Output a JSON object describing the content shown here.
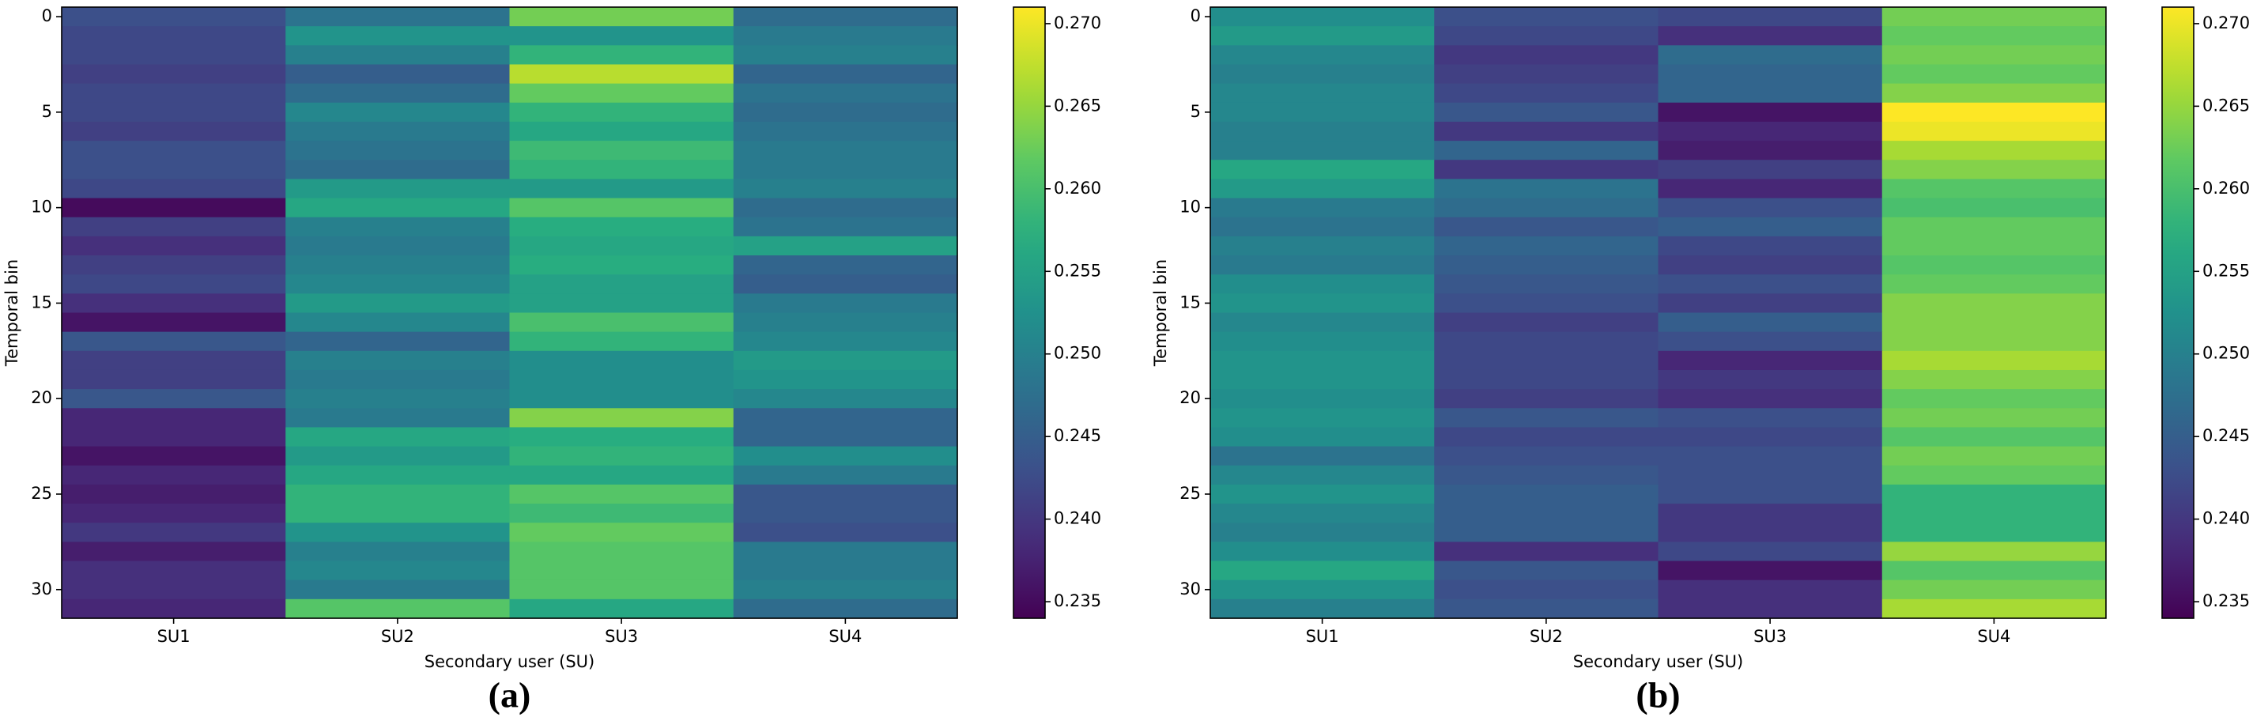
{
  "chart_data": [
    {
      "type": "heatmap",
      "caption": "(a)",
      "xlabel": "Secondary user (SU)",
      "ylabel": "Temporal bin",
      "categories": [
        "SU1",
        "SU2",
        "SU3",
        "SU4"
      ],
      "ylim": [
        -0.5,
        31.5
      ],
      "yticks": [
        0,
        5,
        10,
        15,
        20,
        25,
        30
      ],
      "colormap": "viridis",
      "zlim": [
        0.234,
        0.271
      ],
      "zticks": [
        0.235,
        {
          "value": 0.24,
          "label": "0.240"
        },
        0.245,
        {
          "value": 0.25,
          "label": "0.250"
        },
        0.255,
        {
          "value": 0.26,
          "label": "0.260"
        },
        0.265,
        {
          "value": 0.27,
          "label": "0.270"
        }
      ],
      "values": [
        [
          0.243,
          0.248,
          0.263,
          0.247
        ],
        [
          0.242,
          0.253,
          0.253,
          0.249
        ],
        [
          0.242,
          0.25,
          0.258,
          0.25
        ],
        [
          0.241,
          0.245,
          0.267,
          0.246
        ],
        [
          0.242,
          0.247,
          0.262,
          0.248
        ],
        [
          0.242,
          0.251,
          0.258,
          0.247
        ],
        [
          0.241,
          0.249,
          0.256,
          0.248
        ],
        [
          0.243,
          0.248,
          0.259,
          0.249
        ],
        [
          0.243,
          0.247,
          0.258,
          0.249
        ],
        [
          0.242,
          0.254,
          0.254,
          0.25
        ],
        [
          0.235,
          0.256,
          0.261,
          0.247
        ],
        [
          0.241,
          0.25,
          0.257,
          0.248
        ],
        [
          0.239,
          0.249,
          0.256,
          0.255
        ],
        [
          0.241,
          0.25,
          0.257,
          0.246
        ],
        [
          0.242,
          0.251,
          0.255,
          0.245
        ],
        [
          0.239,
          0.254,
          0.255,
          0.249
        ],
        [
          0.236,
          0.251,
          0.26,
          0.25
        ],
        [
          0.244,
          0.246,
          0.258,
          0.251
        ],
        [
          0.241,
          0.25,
          0.252,
          0.254
        ],
        [
          0.241,
          0.249,
          0.252,
          0.253
        ],
        [
          0.244,
          0.25,
          0.252,
          0.251
        ],
        [
          0.238,
          0.249,
          0.264,
          0.246
        ],
        [
          0.238,
          0.256,
          0.257,
          0.246
        ],
        [
          0.236,
          0.254,
          0.258,
          0.252
        ],
        [
          0.238,
          0.256,
          0.256,
          0.249
        ],
        [
          0.237,
          0.258,
          0.261,
          0.244
        ],
        [
          0.238,
          0.258,
          0.259,
          0.244
        ],
        [
          0.24,
          0.253,
          0.262,
          0.243
        ],
        [
          0.237,
          0.25,
          0.261,
          0.249
        ],
        [
          0.239,
          0.251,
          0.261,
          0.249
        ],
        [
          0.239,
          0.249,
          0.261,
          0.25
        ],
        [
          0.238,
          0.261,
          0.256,
          0.247
        ]
      ]
    },
    {
      "type": "heatmap",
      "caption": "(b)",
      "xlabel": "Secondary user (SU)",
      "ylabel": "Temporal bin",
      "categories": [
        "SU1",
        "SU2",
        "SU3",
        "SU4"
      ],
      "ylim": [
        -0.5,
        31.5
      ],
      "yticks": [
        0,
        5,
        10,
        15,
        20,
        25,
        30
      ],
      "colormap": "viridis",
      "zlim": [
        0.234,
        0.271
      ],
      "zticks": [
        0.235,
        {
          "value": 0.24,
          "label": "0.240"
        },
        0.245,
        {
          "value": 0.25,
          "label": "0.250"
        },
        0.255,
        {
          "value": 0.26,
          "label": "0.260"
        },
        0.265,
        {
          "value": 0.27,
          "label": "0.270"
        }
      ],
      "values": [
        [
          0.252,
          0.243,
          0.242,
          0.263
        ],
        [
          0.254,
          0.242,
          0.239,
          0.262
        ],
        [
          0.251,
          0.24,
          0.247,
          0.263
        ],
        [
          0.25,
          0.241,
          0.246,
          0.262
        ],
        [
          0.251,
          0.242,
          0.246,
          0.264
        ],
        [
          0.251,
          0.244,
          0.236,
          0.271
        ],
        [
          0.25,
          0.24,
          0.238,
          0.27
        ],
        [
          0.25,
          0.246,
          0.237,
          0.266
        ],
        [
          0.256,
          0.24,
          0.241,
          0.264
        ],
        [
          0.254,
          0.248,
          0.238,
          0.261
        ],
        [
          0.249,
          0.247,
          0.243,
          0.26
        ],
        [
          0.248,
          0.244,
          0.245,
          0.262
        ],
        [
          0.25,
          0.246,
          0.242,
          0.262
        ],
        [
          0.249,
          0.245,
          0.241,
          0.261
        ],
        [
          0.252,
          0.244,
          0.243,
          0.262
        ],
        [
          0.253,
          0.243,
          0.241,
          0.264
        ],
        [
          0.251,
          0.241,
          0.245,
          0.264
        ],
        [
          0.252,
          0.242,
          0.243,
          0.264
        ],
        [
          0.253,
          0.242,
          0.238,
          0.266
        ],
        [
          0.253,
          0.242,
          0.24,
          0.264
        ],
        [
          0.252,
          0.241,
          0.239,
          0.262
        ],
        [
          0.253,
          0.244,
          0.243,
          0.263
        ],
        [
          0.252,
          0.242,
          0.242,
          0.261
        ],
        [
          0.248,
          0.243,
          0.243,
          0.263
        ],
        [
          0.251,
          0.244,
          0.243,
          0.262
        ],
        [
          0.253,
          0.245,
          0.243,
          0.258
        ],
        [
          0.251,
          0.245,
          0.24,
          0.258
        ],
        [
          0.25,
          0.245,
          0.24,
          0.258
        ],
        [
          0.252,
          0.239,
          0.242,
          0.265
        ],
        [
          0.256,
          0.244,
          0.236,
          0.261
        ],
        [
          0.253,
          0.243,
          0.239,
          0.263
        ],
        [
          0.25,
          0.244,
          0.239,
          0.266
        ]
      ]
    }
  ]
}
